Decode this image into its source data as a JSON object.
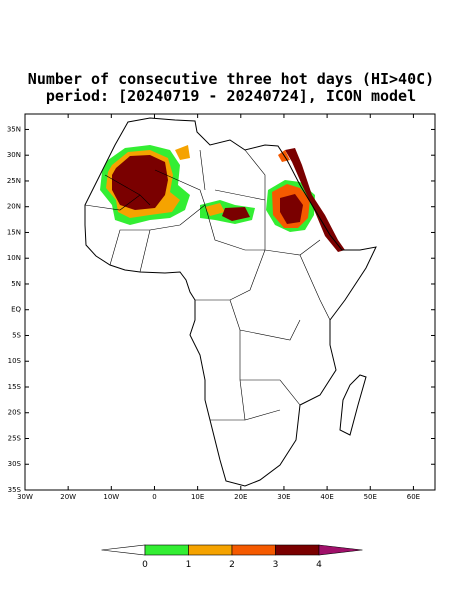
{
  "title": [
    "Number of consecutive three hot days (HI>40C)",
    "period: [20240719 - 20240724], ICON model"
  ],
  "map": {
    "xlim": [
      -30,
      65
    ],
    "ylim": [
      -35,
      38
    ],
    "xticks": [
      {
        "value": -30,
        "label": "30W"
      },
      {
        "value": -20,
        "label": "20W"
      },
      {
        "value": -10,
        "label": "10W"
      },
      0,
      {
        "value": 10,
        "label": "10E"
      },
      {
        "value": 20,
        "label": "20E"
      },
      {
        "value": 30,
        "label": "30E"
      },
      {
        "value": 40,
        "label": "40E"
      },
      {
        "value": 50,
        "label": "50E"
      },
      {
        "value": 60,
        "label": "60E"
      }
    ],
    "yticks": [
      {
        "value": 35,
        "label": "35N"
      },
      {
        "value": 30,
        "label": "30N"
      },
      {
        "value": 25,
        "label": "25N"
      },
      {
        "value": 20,
        "label": "20N"
      },
      {
        "value": 15,
        "label": "15N"
      },
      {
        "value": 10,
        "label": "10N"
      },
      {
        "value": 5,
        "label": "5N"
      },
      {
        "value": 0,
        "label": "EQ"
      },
      {
        "value": -5,
        "label": "5S"
      },
      {
        "value": -10,
        "label": "10S"
      },
      {
        "value": -15,
        "label": "15S"
      },
      {
        "value": -20,
        "label": "20S"
      },
      {
        "value": -25,
        "label": "25S"
      },
      {
        "value": -30,
        "label": "30S"
      },
      {
        "value": -35,
        "label": "35S"
      }
    ]
  },
  "colorbar": {
    "levels": [
      0,
      1,
      2,
      3,
      4
    ],
    "colors": [
      "#ffffff",
      "#33ee33",
      "#f5a300",
      "#f55a00",
      "#7a0000",
      "#a0106a"
    ]
  }
}
